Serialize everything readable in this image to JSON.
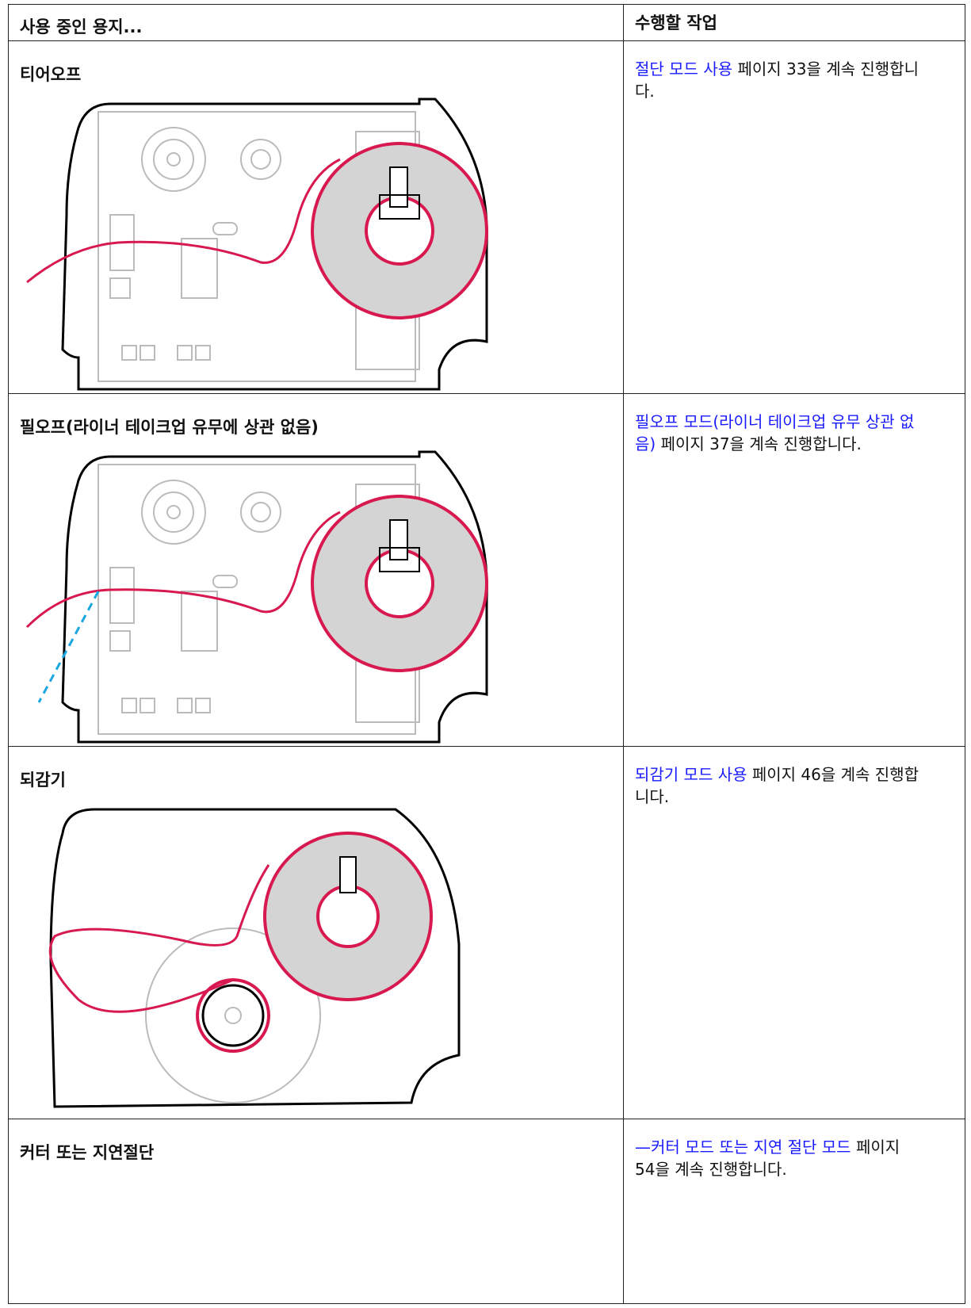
{
  "header": {
    "col1": "사용 중인 용지...",
    "col2": "수행할 작업"
  },
  "rows": [
    {
      "media": "티어오프",
      "link": "절단 모드 사용",
      "text": "페이지 33을 계속 진행합니다."
    },
    {
      "media": "필오프(라이너 테이크업 유무에 상관 없음)",
      "link": "필오프 모드(라이너 테이크업 유무 상관 없음)",
      "text": "페이지 37을 계속 진행합니다."
    },
    {
      "media": "되감기",
      "link": "되감기 모드 사용",
      "text": "페이지 46을 계속 진행합니다."
    },
    {
      "media": "커터 또는 지연절단",
      "link": "—커터 모드 또는 지연 절단 모드",
      "text": "페이지 54을 계속 진행합니다."
    }
  ]
}
